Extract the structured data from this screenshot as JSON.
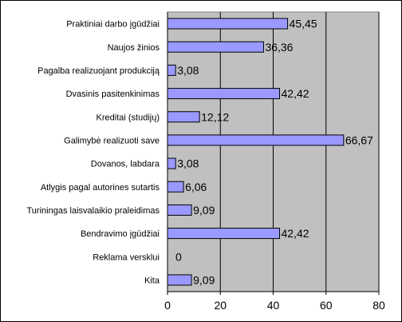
{
  "chart_data": {
    "type": "bar",
    "orientation": "horizontal",
    "categories": [
      "Praktiniai darbo įgūdžiai",
      "Naujos žinios",
      "Pagalba realizuojant produkciją",
      "Dvasinis pasitenkinimas",
      "Kreditai (studijų)",
      "Galimybė realizuoti save",
      "Dovanos, labdara",
      "Atlygis pagal autorines sutartis",
      "Turiningas laisvalaikio praleidimas",
      "Bendravimo įgūdžiai",
      "Reklama versklui",
      "Kita"
    ],
    "values": [
      45.45,
      36.36,
      3.08,
      42.42,
      12.12,
      66.67,
      3.08,
      6.06,
      9.09,
      42.42,
      0,
      9.09
    ],
    "value_labels": [
      "45,45",
      "36,36",
      "3,08",
      "42,42",
      "12,12",
      "66,67",
      "3,08",
      "6,06",
      "9,09",
      "42,42",
      "0",
      "9,09"
    ],
    "xlim": [
      0,
      80
    ],
    "xticks": [
      0,
      20,
      40,
      60,
      80
    ],
    "xtick_labels": [
      "0",
      "20",
      "40",
      "60",
      "80"
    ],
    "grid": true,
    "legend": false,
    "colors": {
      "bar_fill": "#9999ff",
      "bar_stroke": "#000000",
      "plot_background": "#c0c0c0",
      "gridline": "#000000"
    }
  }
}
